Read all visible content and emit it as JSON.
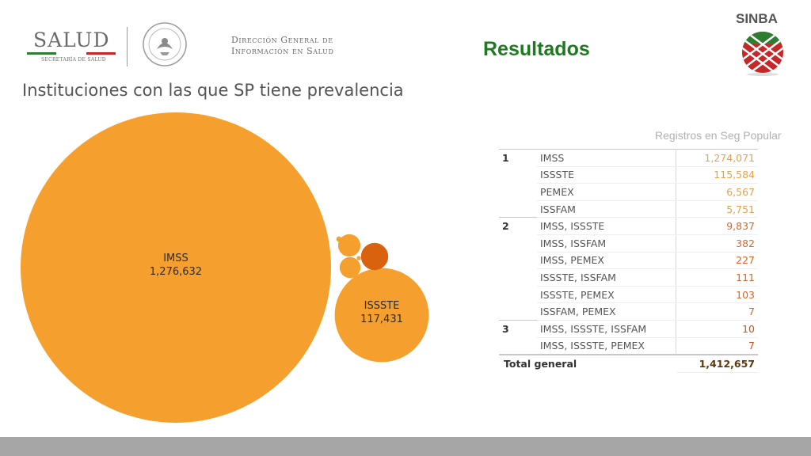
{
  "header": {
    "salud": "SALUD",
    "salud_sub": "SECRETARÍA DE SALUD",
    "dgis_line1": "Dirección General de",
    "dgis_line2": "Información en Salud",
    "title": "Resultados",
    "sinba": "SINBA"
  },
  "colors": {
    "bubble_main": "#F59F2E",
    "bubble_dark": "#D9620F",
    "title_green": "#1F7A1F",
    "footer": "#A6A6A6"
  },
  "chart_data": [
    {
      "type": "bubble",
      "title": "Instituciones con las que SP tiene prevalencia",
      "bubbles": [
        {
          "label": "IMSS",
          "value": 1276632,
          "display": "1,276,632",
          "labeled": true
        },
        {
          "label": "ISSSTE",
          "value": 117431,
          "display": "117,431",
          "labeled": true
        },
        {
          "label": "",
          "value": 9837,
          "labeled": false,
          "color": "dark"
        },
        {
          "label": "",
          "value": 6567,
          "labeled": false
        },
        {
          "label": "",
          "value": 5751,
          "labeled": false
        },
        {
          "label": "",
          "value": 382,
          "labeled": false
        },
        {
          "label": "",
          "value": 227,
          "labeled": false
        }
      ]
    },
    {
      "type": "table",
      "caption": "Registros en Seg Popular",
      "groups": [
        {
          "group": "1",
          "rows": [
            {
              "inst": "IMSS",
              "value": "1,274,071"
            },
            {
              "inst": "ISSSTE",
              "value": "115,584"
            },
            {
              "inst": "PEMEX",
              "value": "6,567"
            },
            {
              "inst": "ISSFAM",
              "value": "5,751"
            }
          ]
        },
        {
          "group": "2",
          "rows": [
            {
              "inst": "IMSS, ISSSTE",
              "value": "9,837"
            },
            {
              "inst": "IMSS, ISSFAM",
              "value": "382"
            },
            {
              "inst": "IMSS, PEMEX",
              "value": "227"
            },
            {
              "inst": "ISSSTE, ISSFAM",
              "value": "111"
            },
            {
              "inst": "ISSSTE, PEMEX",
              "value": "103"
            },
            {
              "inst": "ISSFAM, PEMEX",
              "value": "7"
            }
          ]
        },
        {
          "group": "3",
          "rows": [
            {
              "inst": "IMSS, ISSSTE, ISSFAM",
              "value": "10"
            },
            {
              "inst": "IMSS, ISSSTE, PEMEX",
              "value": "7"
            }
          ]
        }
      ],
      "total_label": "Total general",
      "total_value": "1,412,657"
    }
  ]
}
